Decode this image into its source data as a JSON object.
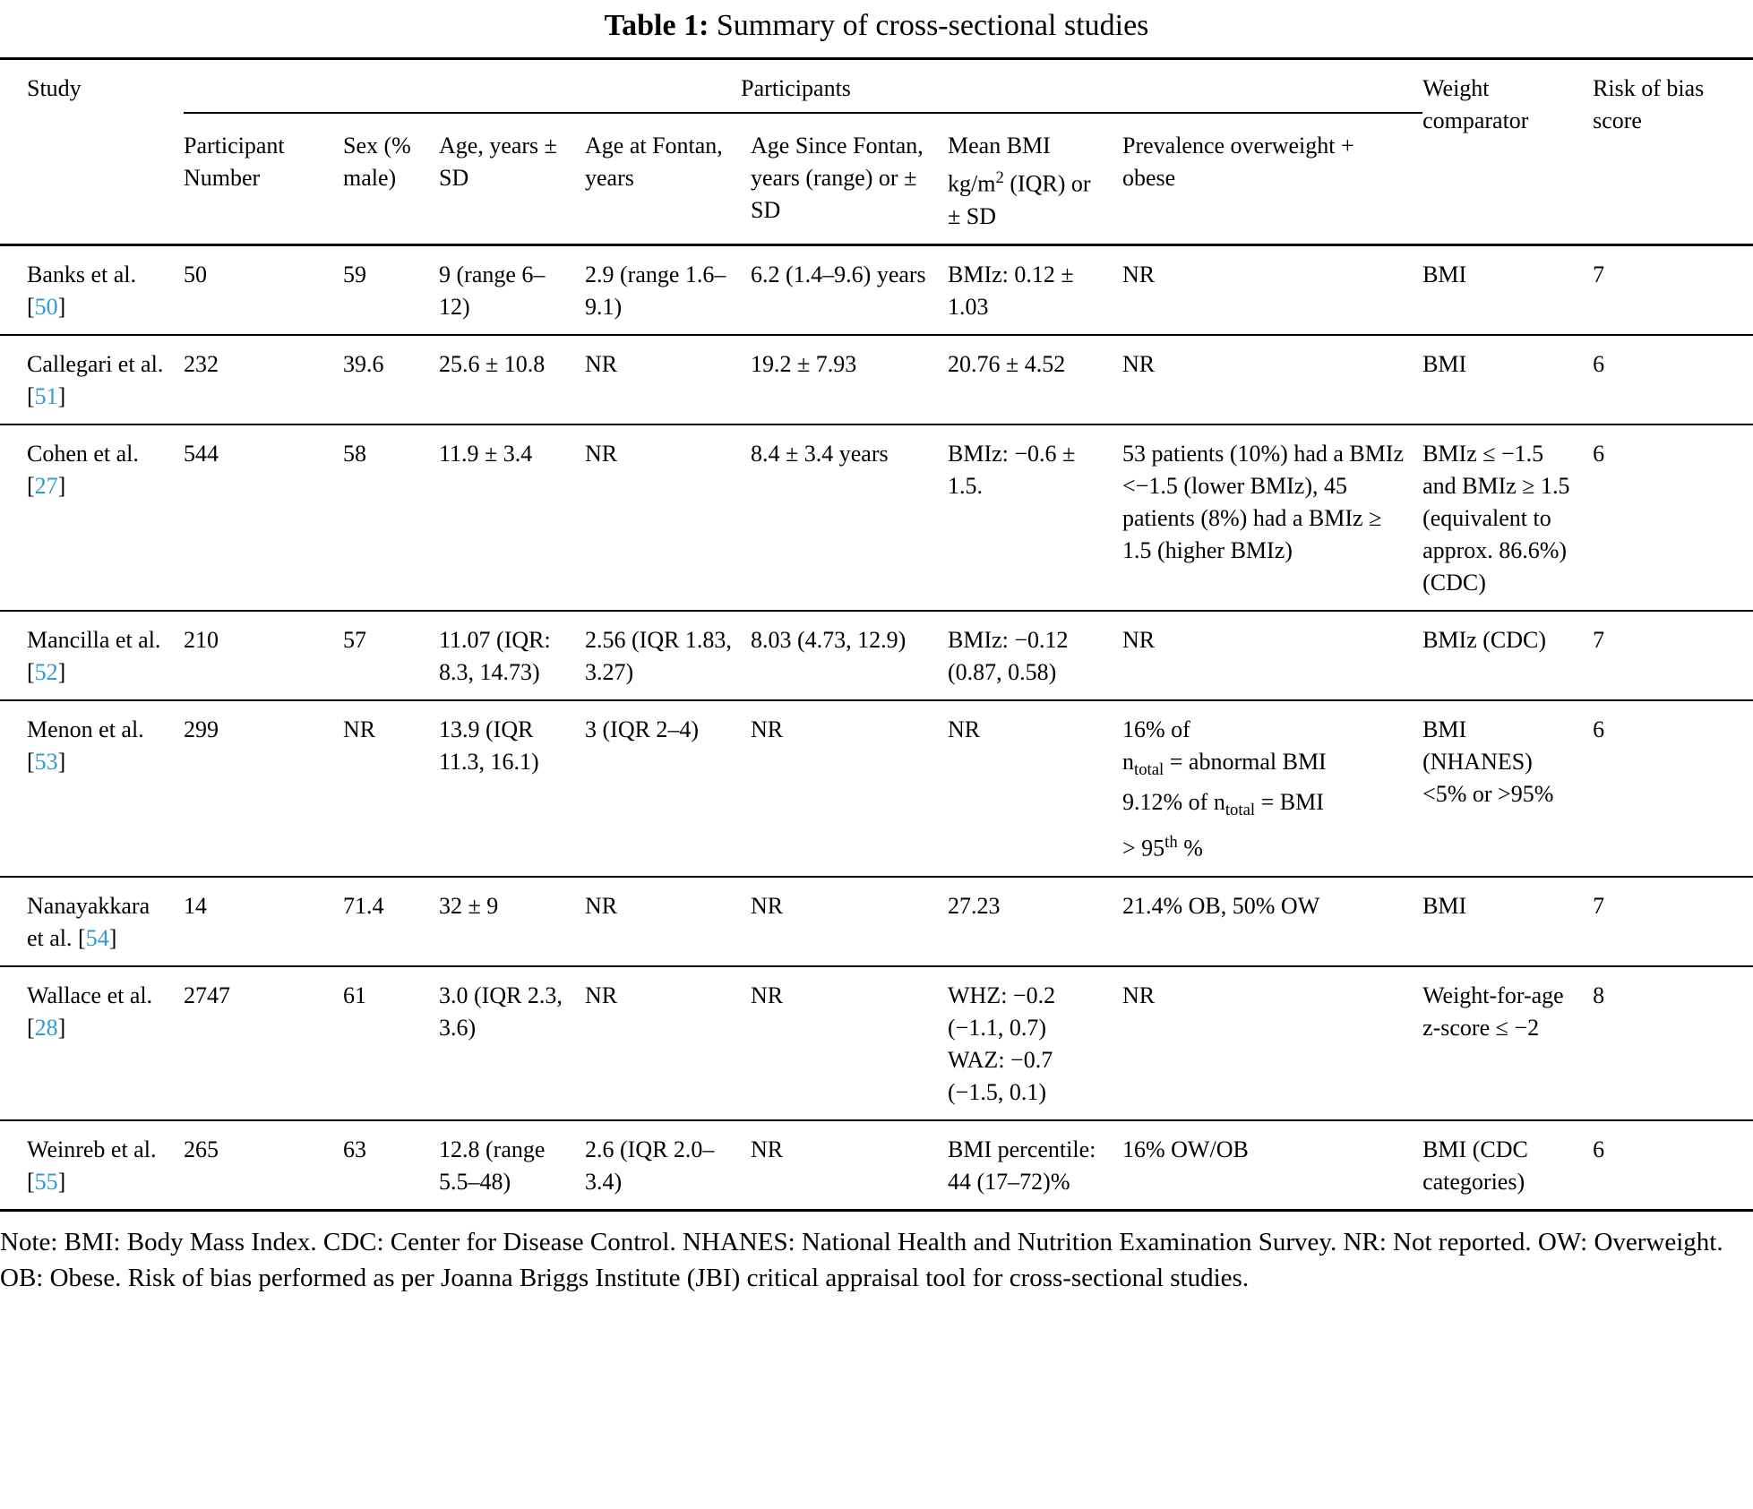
{
  "accent_color": "#2E9BD6",
  "title": {
    "label": "Table 1:",
    "text": "Summary of cross-sectional studies"
  },
  "headers": {
    "study": "Study",
    "participants_group": "Participants",
    "participant_number": "Participant Number",
    "sex": "Sex (% male)",
    "age_years": "Age, years ± SD",
    "age_at_fontan": "Age at Fontan, years",
    "age_since_fontan": "Age Since Fontan, years (range) or ± SD",
    "mean_bmi_html": "Mean BMI kg/m<sup>2</sup> (IQR) or ± SD",
    "prevalence": "Prevalence overweight + obese",
    "weight_comparator": "Weight comparator",
    "risk_of_bias": "Risk of bias score"
  },
  "rows": [
    {
      "study": "Banks et al.",
      "ref": "50",
      "participant_number": "50",
      "sex": "59",
      "age_years": "9 (range 6–12)",
      "age_at_fontan": "2.9 (range 1.6–9.1)",
      "age_since_fontan": "6.2 (1.4–9.6) years",
      "mean_bmi": "BMIz: 0.12 ± 1.03",
      "prevalence": "NR",
      "weight_comparator": "BMI",
      "risk_of_bias": "7"
    },
    {
      "study": "Callegari et al.",
      "ref": "51",
      "participant_number": "232",
      "sex": "39.6",
      "age_years": "25.6 ± 10.8",
      "age_at_fontan": "NR",
      "age_since_fontan": "19.2 ± 7.93",
      "mean_bmi": "20.76 ± 4.52",
      "prevalence": "NR",
      "weight_comparator": "BMI",
      "risk_of_bias": "6"
    },
    {
      "study": "Cohen et al.",
      "ref": "27",
      "participant_number": "544",
      "sex": "58",
      "age_years": "11.9 ± 3.4",
      "age_at_fontan": "NR",
      "age_since_fontan": "8.4 ± 3.4 years",
      "mean_bmi": "BMIz: −0.6 ± 1.5.",
      "prevalence": "53 patients (10%) had a BMIz <−1.5 (lower BMIz), 45 patients (8%) had a BMIz ≥ 1.5 (higher BMIz)",
      "weight_comparator": "BMIz ≤ −1.5 and BMIz ≥ 1.5 (equivalent to approx. 86.6%) (CDC)",
      "risk_of_bias": "6"
    },
    {
      "study": "Mancilla et al.",
      "ref": "52",
      "participant_number": "210",
      "sex": "57",
      "age_years": "11.07 (IQR: 8.3, 14.73)",
      "age_at_fontan": "2.56 (IQR 1.83, 3.27)",
      "age_since_fontan": "8.03 (4.73, 12.9)",
      "mean_bmi": "BMIz: −0.12 (0.87, 0.58)",
      "prevalence": "NR",
      "weight_comparator": "BMIz (CDC)",
      "risk_of_bias": "7"
    },
    {
      "study": "Menon et al.",
      "ref": "53",
      "participant_number": "299",
      "sex": "NR",
      "age_years": "13.9 (IQR 11.3, 16.1)",
      "age_at_fontan": "3 (IQR 2–4)",
      "age_since_fontan": "NR",
      "mean_bmi": "NR",
      "prevalence_html": "16% of<br>n<sub>total</sub> = abnormal BMI<br>9.12% of n<sub>total</sub> = BMI<br>> 95<sup>th</sup> %",
      "weight_comparator": "BMI (NHANES) <5% or >95%",
      "risk_of_bias": "6"
    },
    {
      "study": "Nanayakkara et al.",
      "ref": "54",
      "participant_number": "14",
      "sex": "71.4",
      "age_years": "32 ± 9",
      "age_at_fontan": "NR",
      "age_since_fontan": "NR",
      "mean_bmi": "27.23",
      "prevalence": "21.4% OB, 50% OW",
      "weight_comparator": "BMI",
      "risk_of_bias": "7"
    },
    {
      "study": "Wallace et al.",
      "ref": "28",
      "participant_number": "2747",
      "sex": "61",
      "age_years": "3.0 (IQR 2.3, 3.6)",
      "age_at_fontan": "NR",
      "age_since_fontan": "NR",
      "mean_bmi_html": "WHZ: −0.2 (−1.1, 0.7)<br>WAZ: −0.7 (−1.5, 0.1)",
      "prevalence": "NR",
      "weight_comparator": "Weight-for-age z-score ≤ −2",
      "risk_of_bias": "8"
    },
    {
      "study": "Weinreb et al.",
      "ref": "55",
      "participant_number": "265",
      "sex": "63",
      "age_years": "12.8 (range 5.5–48)",
      "age_at_fontan": "2.6 (IQR 2.0–3.4)",
      "age_since_fontan": "NR",
      "mean_bmi": "BMI percentile: 44 (17–72)%",
      "prevalence": "16% OW/OB",
      "weight_comparator": "BMI (CDC categories)",
      "risk_of_bias": "6"
    }
  ],
  "note": "Note: BMI: Body Mass Index. CDC: Center for Disease Control. NHANES: National Health and Nutrition Examination Survey. NR: Not reported. OW: Overweight. OB: Obese. Risk of bias performed as per Joanna Briggs Institute (JBI) critical appraisal tool for cross-sectional studies."
}
